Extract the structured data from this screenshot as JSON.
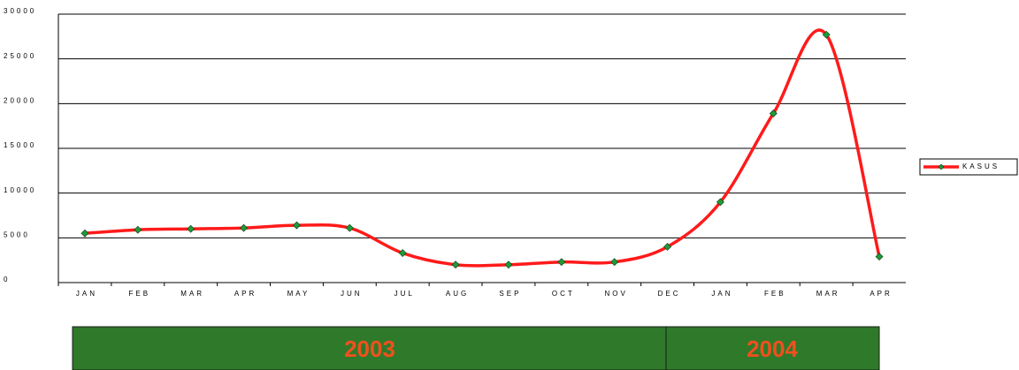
{
  "chart_data": {
    "type": "line",
    "categories": [
      "JAN",
      "FEB",
      "MAR",
      "APR",
      "MAY",
      "JUN",
      "JUL",
      "AUG",
      "SEP",
      "OCT",
      "NOV",
      "DEC",
      "JAN",
      "FEB",
      "MAR",
      "APR"
    ],
    "series": [
      {
        "name": "KASUS",
        "color": "#ff1a1a",
        "values": [
          5500,
          5900,
          6000,
          6100,
          6400,
          6100,
          3300,
          2000,
          2000,
          2300,
          2300,
          4000,
          9000,
          18900,
          27700,
          2900
        ]
      }
    ],
    "ylim": [
      0,
      30000
    ],
    "yticks": [
      0,
      5000,
      10000,
      15000,
      20000,
      25000,
      30000
    ],
    "grid": true,
    "groups": [
      "2003",
      "2004"
    ]
  }
}
